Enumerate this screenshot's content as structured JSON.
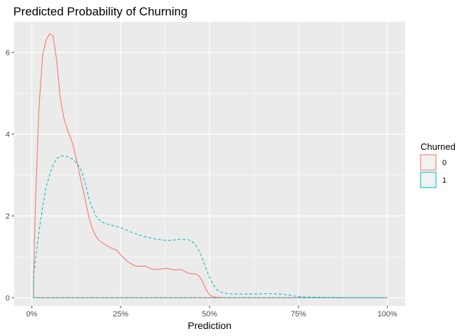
{
  "chart_data": {
    "type": "area",
    "title": "Predicted Probability of Churning",
    "xlabel": "Prediction",
    "ylabel": "",
    "xlim": [
      -0.05,
      1.05
    ],
    "ylim": [
      -0.2,
      6.75
    ],
    "x_ticks": [
      0,
      0.25,
      0.5,
      0.75,
      1.0
    ],
    "x_tick_labels": [
      "0%",
      "25%",
      "50%",
      "75%",
      "100%"
    ],
    "y_ticks": [
      0,
      2,
      4,
      6
    ],
    "y_tick_labels": [
      "0",
      "2",
      "4",
      "6"
    ],
    "grid": true,
    "legend": {
      "title": "Churned",
      "position": "right"
    },
    "series": [
      {
        "name": "0",
        "color": "#F8766D",
        "linetype": "solid",
        "x": [
          0.005,
          0.01,
          0.02,
          0.03,
          0.04,
          0.05,
          0.06,
          0.07,
          0.08,
          0.09,
          0.1,
          0.11,
          0.12,
          0.13,
          0.14,
          0.15,
          0.16,
          0.17,
          0.18,
          0.19,
          0.2,
          0.22,
          0.24,
          0.25,
          0.27,
          0.29,
          0.3,
          0.32,
          0.34,
          0.36,
          0.38,
          0.4,
          0.42,
          0.44,
          0.46,
          0.47,
          0.48,
          0.49,
          0.5,
          0.51,
          0.52,
          0.55,
          0.6,
          0.7,
          0.8,
          0.9,
          1.0
        ],
        "y": [
          0.4,
          2.2,
          4.6,
          5.9,
          6.3,
          6.45,
          6.4,
          5.8,
          4.9,
          4.4,
          4.1,
          3.9,
          3.6,
          3.2,
          2.8,
          2.4,
          2.0,
          1.7,
          1.5,
          1.4,
          1.33,
          1.23,
          1.16,
          1.05,
          0.88,
          0.78,
          0.77,
          0.77,
          0.69,
          0.7,
          0.72,
          0.68,
          0.69,
          0.6,
          0.58,
          0.54,
          0.4,
          0.2,
          0.07,
          0.02,
          0.01,
          0.0,
          0.0,
          0.0,
          0.0,
          0.0,
          0.0
        ]
      },
      {
        "name": "1",
        "color": "#00BFC4",
        "linetype": "dashed",
        "x": [
          0.005,
          0.01,
          0.02,
          0.03,
          0.04,
          0.05,
          0.06,
          0.07,
          0.08,
          0.09,
          0.1,
          0.11,
          0.12,
          0.13,
          0.14,
          0.15,
          0.16,
          0.17,
          0.18,
          0.19,
          0.2,
          0.22,
          0.24,
          0.26,
          0.28,
          0.3,
          0.32,
          0.34,
          0.36,
          0.38,
          0.4,
          0.42,
          0.44,
          0.45,
          0.46,
          0.47,
          0.48,
          0.49,
          0.5,
          0.51,
          0.52,
          0.53,
          0.55,
          0.58,
          0.62,
          0.66,
          0.68,
          0.7,
          0.72,
          0.74,
          0.76,
          0.8,
          0.9,
          1.0
        ],
        "y": [
          0.55,
          0.9,
          1.6,
          2.2,
          2.7,
          3.0,
          3.25,
          3.4,
          3.46,
          3.47,
          3.45,
          3.41,
          3.35,
          3.25,
          3.1,
          2.8,
          2.45,
          2.2,
          2.0,
          1.9,
          1.84,
          1.78,
          1.74,
          1.68,
          1.6,
          1.54,
          1.49,
          1.45,
          1.42,
          1.4,
          1.41,
          1.43,
          1.42,
          1.38,
          1.3,
          1.15,
          0.95,
          0.72,
          0.5,
          0.32,
          0.2,
          0.14,
          0.1,
          0.09,
          0.09,
          0.1,
          0.1,
          0.09,
          0.07,
          0.04,
          0.02,
          0.01,
          0.0,
          0.0
        ]
      }
    ]
  }
}
